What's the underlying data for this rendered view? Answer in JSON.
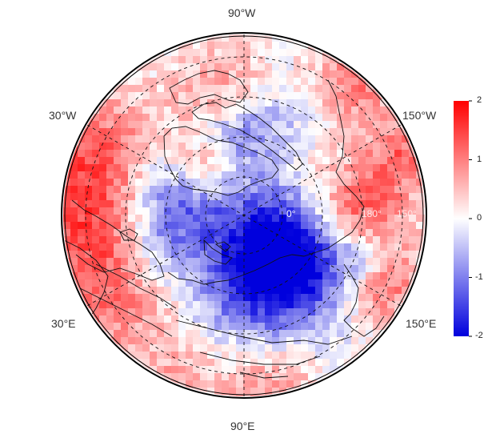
{
  "map": {
    "projection": "north-polar-stereographic",
    "longitude_labels": {
      "top": "90°W",
      "upper_left": "30°W",
      "upper_right": "150°W",
      "lower_left": "30°E",
      "lower_right": "150°E",
      "bottom": "90°E"
    },
    "inner_labels": [
      "0°",
      "180°",
      "150°"
    ],
    "gridlines": "dashed",
    "field": "anomaly",
    "field_pattern": {
      "description_colors": "red positive, blue negative, white near zero",
      "notable_negative_regions": [
        "Greenland interior",
        "East Siberian coast",
        "central Arctic ring"
      ],
      "notable_positive_regions": [
        "North Atlantic",
        "Bering/Alaska coast",
        "Baffin Bay band",
        "Europe west",
        "outer ring"
      ]
    }
  },
  "colorbar": {
    "min": -2,
    "max": 2,
    "ticks": [
      "2",
      "1",
      "0",
      "-1",
      "-2"
    ],
    "colors": {
      "low": "#0000dd",
      "mid": "#ffffff",
      "high": "#ff0000"
    },
    "placement": "right"
  }
}
